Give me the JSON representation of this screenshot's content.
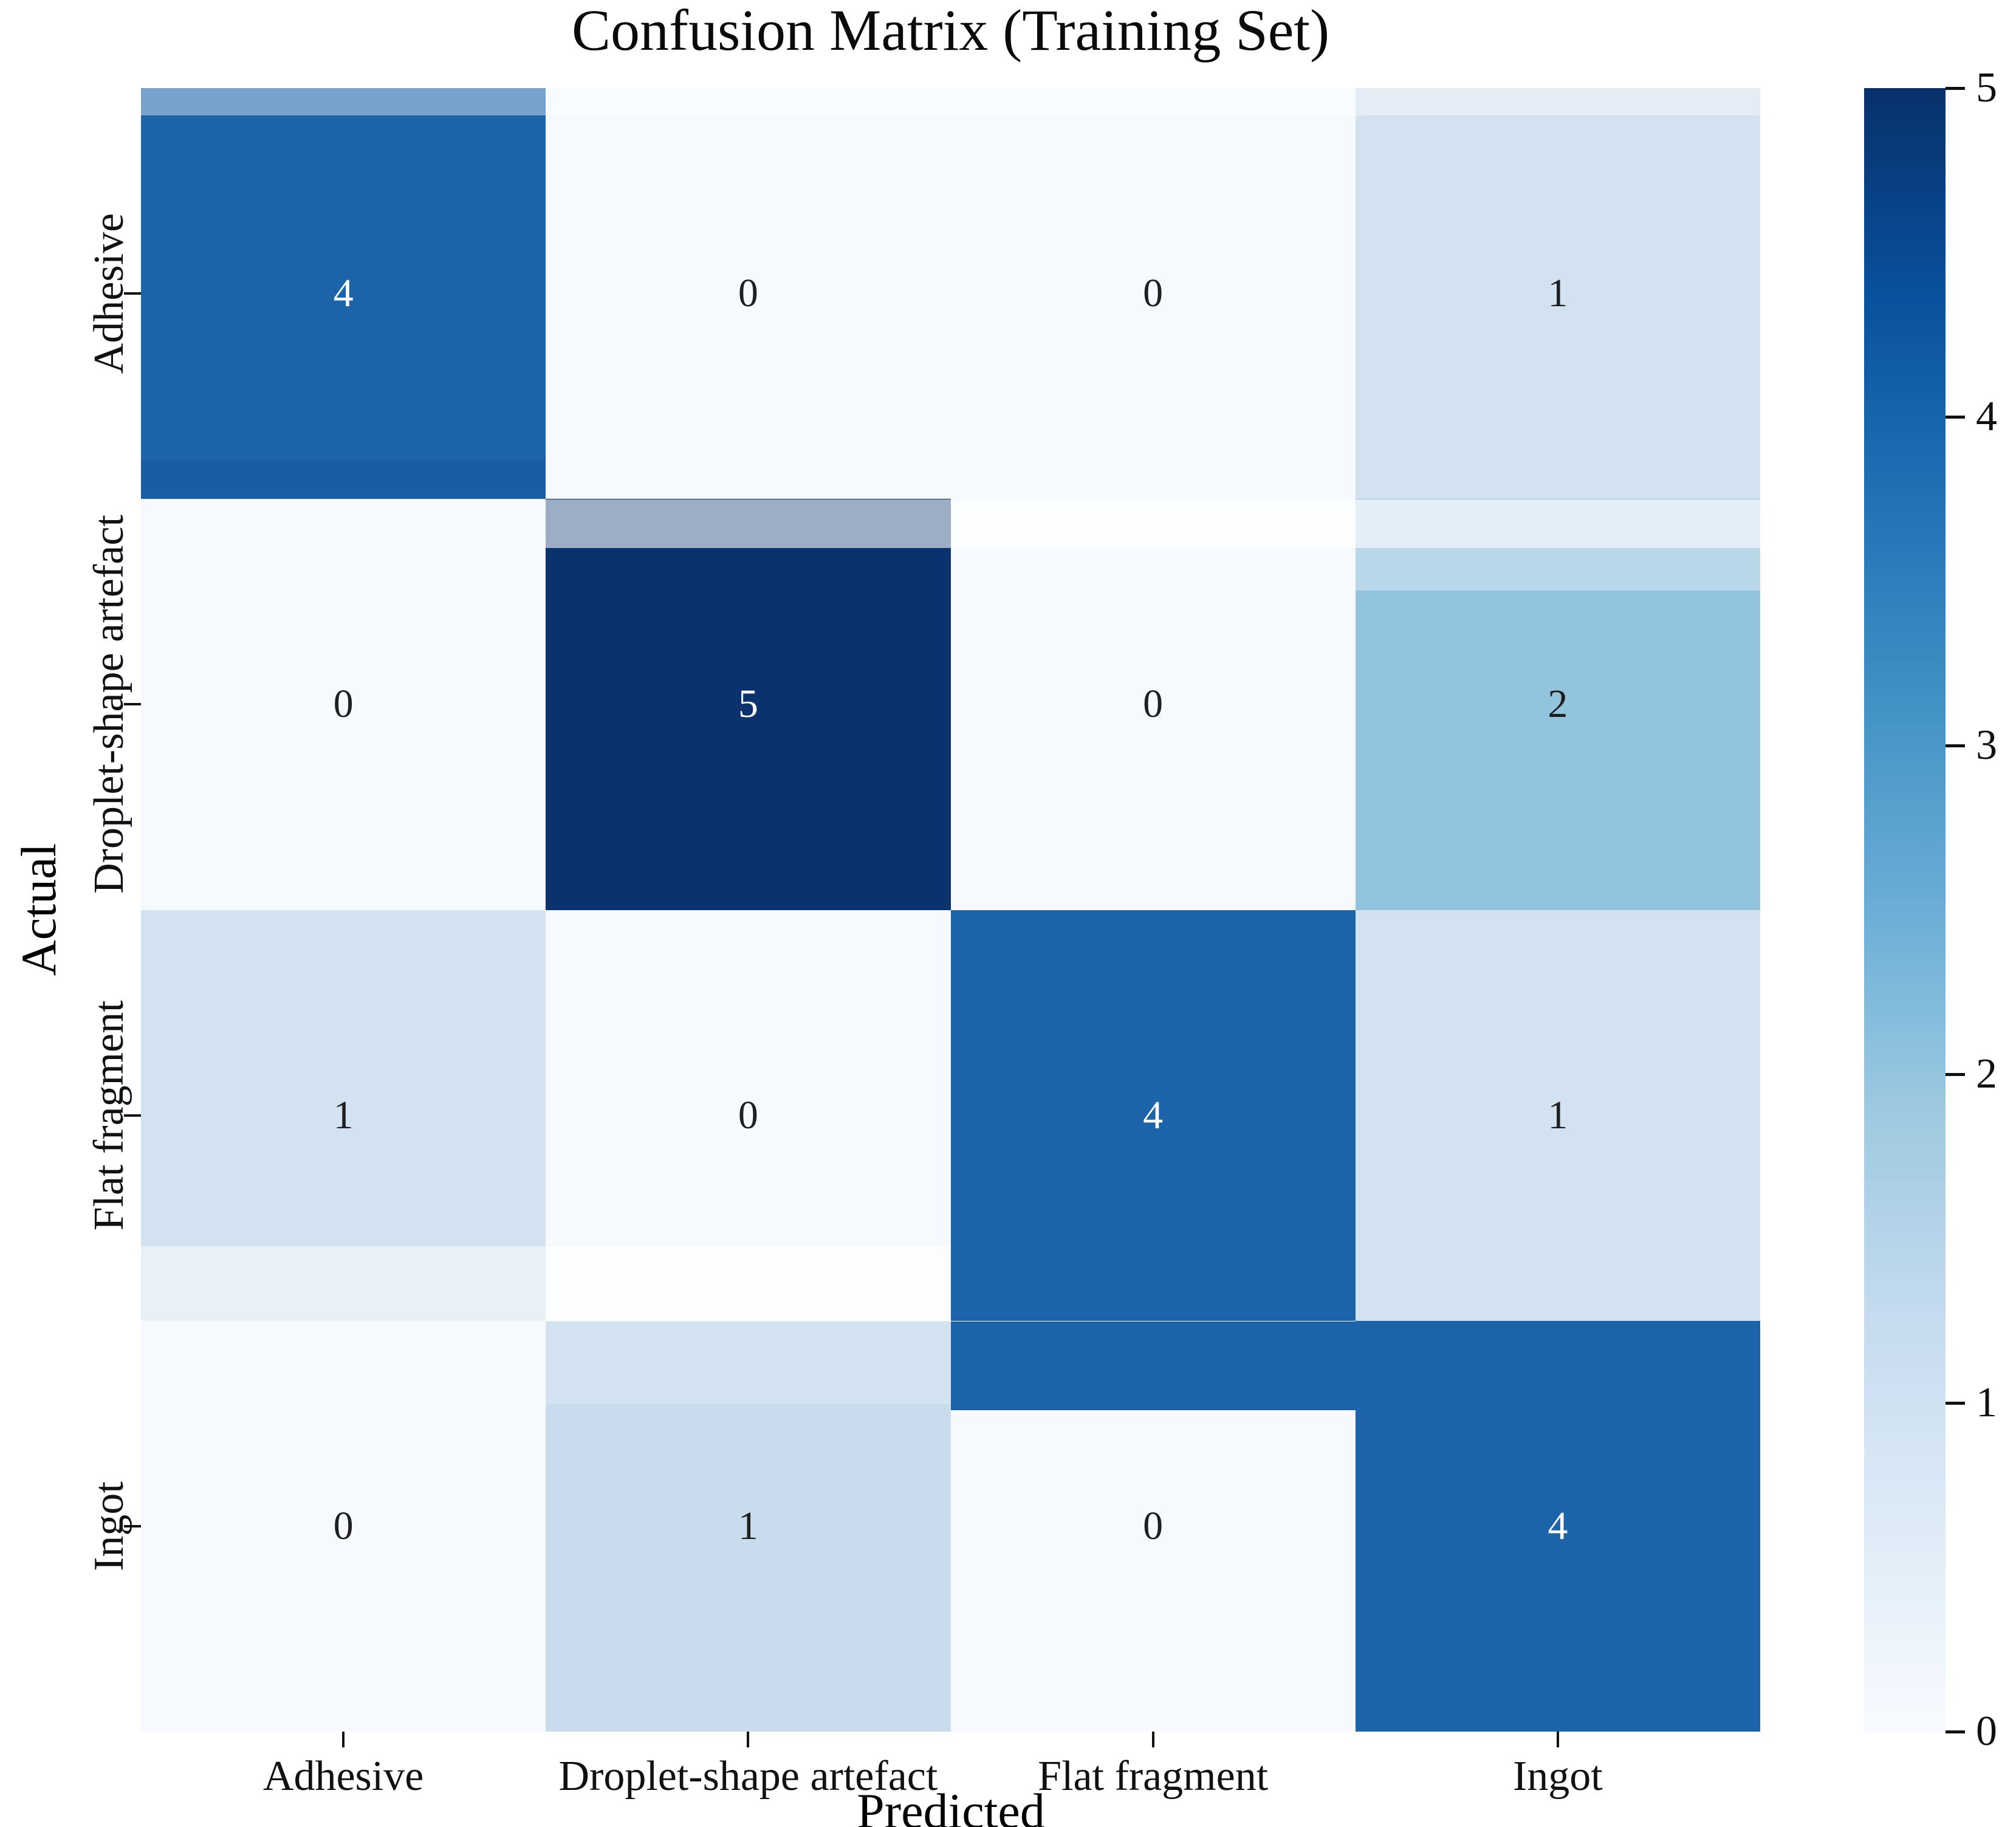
{
  "figure": {
    "background": "#ffffff"
  },
  "chart_data": {
    "type": "heatmap",
    "title": "Confusion Matrix (Training Set)",
    "xlabel": "Predicted",
    "ylabel": "Actual",
    "x_categories": [
      "Adhesive",
      "Droplet-shape artefact",
      "Flat fragment",
      "Ingot"
    ],
    "y_categories": [
      "Adhesive",
      "Droplet-shape artefact",
      "Flat fragment",
      "Ingot"
    ],
    "matrix": [
      [
        4,
        0,
        0,
        1
      ],
      [
        0,
        5,
        0,
        2
      ],
      [
        1,
        0,
        4,
        1
      ],
      [
        0,
        1,
        0,
        4
      ]
    ],
    "vmin": 0,
    "vmax": 5,
    "colormap": "Blues",
    "grid": false,
    "legend": "colorbar-right",
    "colorbar_ticks": [
      0,
      1,
      2,
      3,
      4,
      5
    ],
    "value_colors": {
      "0": "#f6fafe",
      "1": "#d3e2f0",
      "2": "#92c4de",
      "4": "#1b64a9",
      "5": "#0a326f"
    },
    "cell_text_dark": "#1f1f1f",
    "cell_text_light": "#ffffff",
    "light_text_values": [
      4,
      5
    ],
    "colorbar_gradient_bottom_to_top": [
      "#f7fbff",
      "#deebf7",
      "#c6dbef",
      "#9ecae1",
      "#6baed6",
      "#4292c6",
      "#2171b5",
      "#08519c",
      "#08306b"
    ]
  }
}
